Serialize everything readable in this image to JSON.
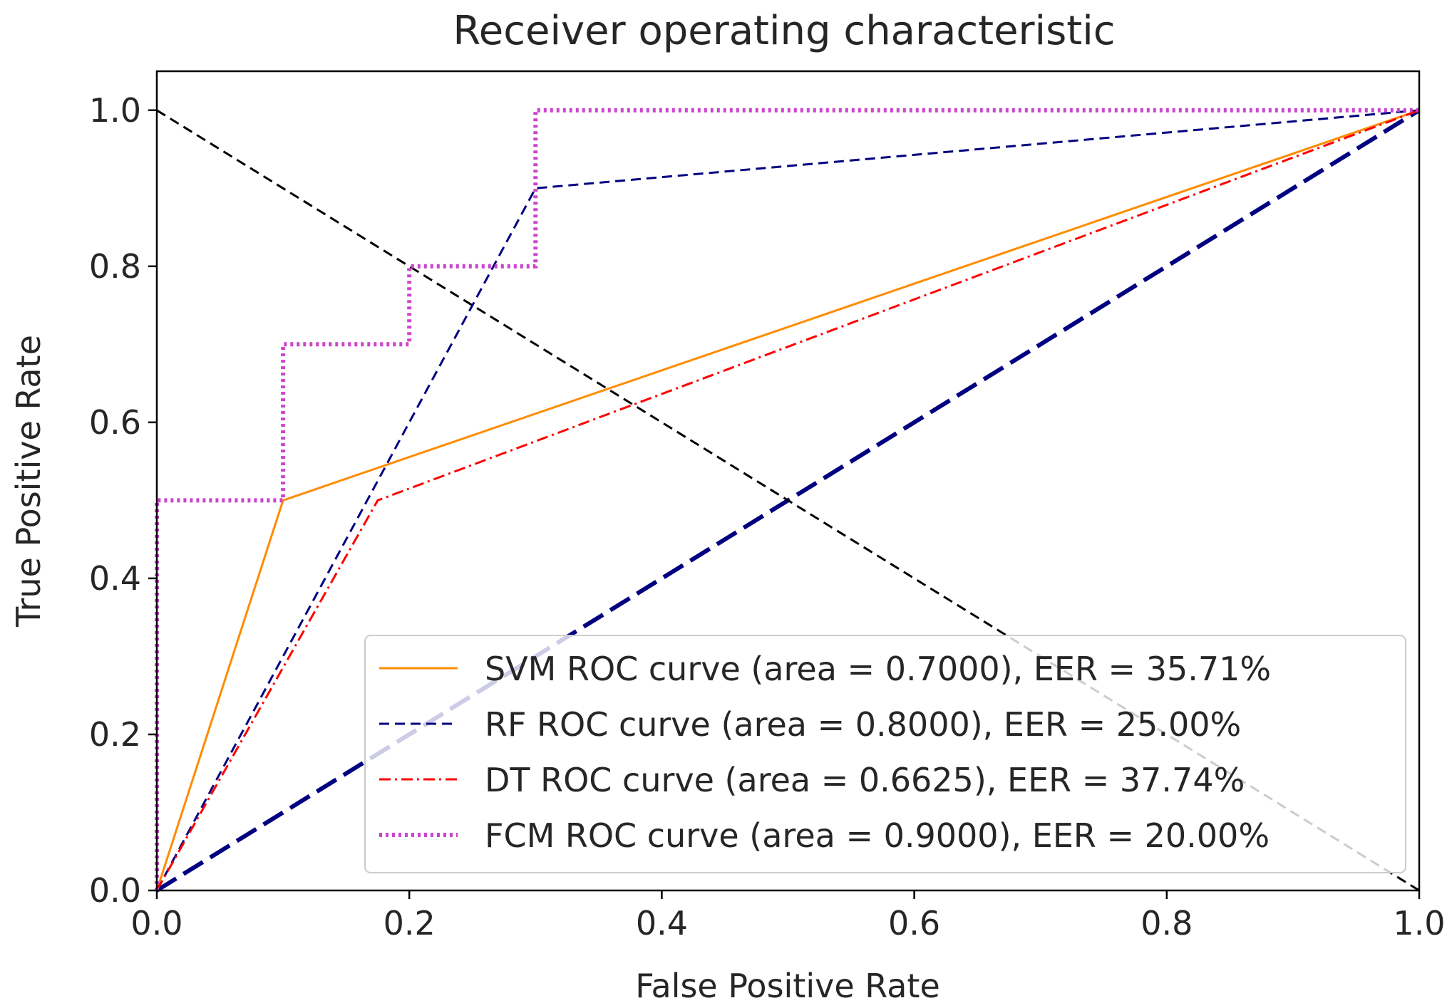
{
  "chart_data": {
    "type": "line",
    "title": "Receiver operating characteristic",
    "xlabel": "False Positive Rate",
    "ylabel": "True Positive Rate",
    "xlim": [
      0.0,
      1.0
    ],
    "ylim": [
      0.0,
      1.05
    ],
    "xticks": [
      0.0,
      0.2,
      0.4,
      0.6,
      0.8,
      1.0
    ],
    "yticks": [
      0.0,
      0.2,
      0.4,
      0.6,
      0.8,
      1.0
    ],
    "xtick_labels": [
      "0.0",
      "0.2",
      "0.4",
      "0.6",
      "0.8",
      "1.0"
    ],
    "ytick_labels": [
      "0.0",
      "0.2",
      "0.4",
      "0.6",
      "0.8",
      "1.0"
    ],
    "grid": false,
    "legend_position": "lower-right",
    "series": [
      {
        "name": "SVM ROC curve (area = 0.7000), EER = 35.71%",
        "color": "#ff8c00",
        "style": "solid",
        "x": [
          0.0,
          0.1,
          1.0
        ],
        "y": [
          0.0,
          0.5,
          1.0
        ]
      },
      {
        "name": "RF ROC curve (area = 0.8000), EER = 25.00%",
        "color": "#000080",
        "style": "dashed",
        "x": [
          0.0,
          0.3,
          1.0
        ],
        "y": [
          0.0,
          0.9,
          1.0
        ]
      },
      {
        "name": "DT ROC curve (area = 0.6625), EER = 37.74%",
        "color": "#ff0000",
        "style": "dashdot",
        "x": [
          0.0,
          0.175,
          1.0
        ],
        "y": [
          0.0,
          0.5,
          1.0
        ]
      },
      {
        "name": "FCM ROC curve (area = 0.9000), EER = 20.00%",
        "color": "#cc44cc",
        "style": "dotted",
        "x": [
          0.0,
          0.0,
          0.1,
          0.1,
          0.2,
          0.2,
          0.3,
          0.3,
          1.0
        ],
        "y": [
          0.0,
          0.5,
          0.5,
          0.7,
          0.7,
          0.8,
          0.8,
          1.0,
          1.0
        ]
      }
    ],
    "reference_lines": [
      {
        "name": "chance-diagonal",
        "color": "#000080",
        "style": "long-dashed",
        "x": [
          0.0,
          1.0
        ],
        "y": [
          0.0,
          1.0
        ]
      },
      {
        "name": "eer-line",
        "color": "#000000",
        "style": "dashed",
        "x": [
          0.0,
          1.0
        ],
        "y": [
          1.0,
          0.0
        ]
      }
    ]
  }
}
